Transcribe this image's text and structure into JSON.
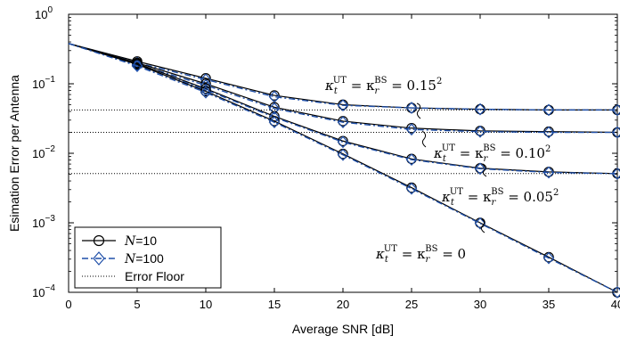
{
  "chart_data": {
    "type": "line",
    "xlabel": "Average SNR [dB]",
    "ylabel": "Esimation Error per Antenna",
    "x_ticks": [
      "0",
      "5",
      "10",
      "15",
      "20",
      "25",
      "30",
      "35",
      "40"
    ],
    "y_ticks": [
      {
        "base": "10",
        "exp": "0"
      },
      {
        "base": "10",
        "exp": "−1"
      },
      {
        "base": "10",
        "exp": "−2"
      },
      {
        "base": "10",
        "exp": "−3"
      },
      {
        "base": "10",
        "exp": "−4"
      }
    ],
    "xlim": [
      0,
      40
    ],
    "ylim": [
      0.0001,
      1
    ],
    "yscale": "log",
    "grid": false,
    "legend_position": "bottom-left",
    "x": [
      0,
      5,
      10,
      15,
      20,
      25,
      30,
      35,
      40
    ],
    "series": [
      {
        "name": "N=10",
        "kappa": "0.15²",
        "color": "#000000",
        "marker": "circle",
        "values": [
          0.38,
          0.21,
          0.12,
          0.068,
          0.05,
          0.045,
          0.043,
          0.042,
          0.042
        ]
      },
      {
        "name": "N=100",
        "kappa": "0.15²",
        "color": "#1f4fa8",
        "marker": "diamond",
        "values": [
          0.38,
          0.2,
          0.115,
          0.065,
          0.049,
          0.045,
          0.043,
          0.042,
          0.042
        ]
      },
      {
        "name": "N=10",
        "kappa": "0.10²",
        "color": "#000000",
        "marker": "circle",
        "values": [
          0.38,
          0.2,
          0.1,
          0.046,
          0.029,
          0.023,
          0.021,
          0.0205,
          0.02
        ]
      },
      {
        "name": "N=100",
        "kappa": "0.10²",
        "color": "#1f4fa8",
        "marker": "diamond",
        "values": [
          0.38,
          0.19,
          0.095,
          0.044,
          0.028,
          0.022,
          0.0205,
          0.02,
          0.02
        ]
      },
      {
        "name": "N=10",
        "kappa": "0.05²",
        "color": "#000000",
        "marker": "circle",
        "values": [
          0.38,
          0.195,
          0.085,
          0.034,
          0.015,
          0.0083,
          0.0061,
          0.0054,
          0.0051
        ]
      },
      {
        "name": "N=100",
        "kappa": "0.05²",
        "color": "#1f4fa8",
        "marker": "diamond",
        "values": [
          0.38,
          0.185,
          0.082,
          0.033,
          0.0145,
          0.0081,
          0.006,
          0.0053,
          0.0051
        ]
      },
      {
        "name": "N=10",
        "kappa": "0",
        "color": "#000000",
        "marker": "circle",
        "values": [
          0.38,
          0.19,
          0.078,
          0.029,
          0.0098,
          0.0032,
          0.001,
          0.00032,
          0.0001
        ]
      },
      {
        "name": "N=100",
        "kappa": "0",
        "color": "#1f4fa8",
        "marker": "diamond",
        "values": [
          0.38,
          0.18,
          0.075,
          0.028,
          0.0095,
          0.0031,
          0.00098,
          0.00031,
          0.0001
        ]
      }
    ],
    "error_floors": [
      0.042,
      0.02,
      0.0051
    ],
    "legend": [
      {
        "label": "N",
        "suffix": "=10",
        "style": "solid-circle"
      },
      {
        "label": "N",
        "suffix": "=100",
        "style": "dashdot-diamond"
      },
      {
        "label": "Error Floor",
        "suffix": "",
        "style": "dotted"
      }
    ],
    "annotations": [
      {
        "text": "κ_t^UT = κ_r^BS = 0.15²",
        "pre": "κ",
        "sub": "t",
        "sup1": "UT",
        "mid": " = κ",
        "sub2": "r",
        "sup2": "BS",
        "post": " = 0.15",
        "sup3": "2"
      },
      {
        "text": "κ_t^UT = κ_r^BS = 0.10²",
        "pre": "κ",
        "sub": "t",
        "sup1": "UT",
        "mid": " = κ",
        "sub2": "r",
        "sup2": "BS",
        "post": " = 0.10",
        "sup3": "2"
      },
      {
        "text": "κ_t^UT = κ_r^BS = 0.05²",
        "pre": "κ",
        "sub": "t",
        "sup1": "UT",
        "mid": " = κ",
        "sub2": "r",
        "sup2": "BS",
        "post": " = 0.05",
        "sup3": "2"
      },
      {
        "text": "κ_t^UT = κ_r^BS = 0",
        "pre": "κ",
        "sub": "t",
        "sup1": "UT",
        "mid": " = κ",
        "sub2": "r",
        "sup2": "BS",
        "post": " = 0",
        "sup3": ""
      }
    ]
  }
}
